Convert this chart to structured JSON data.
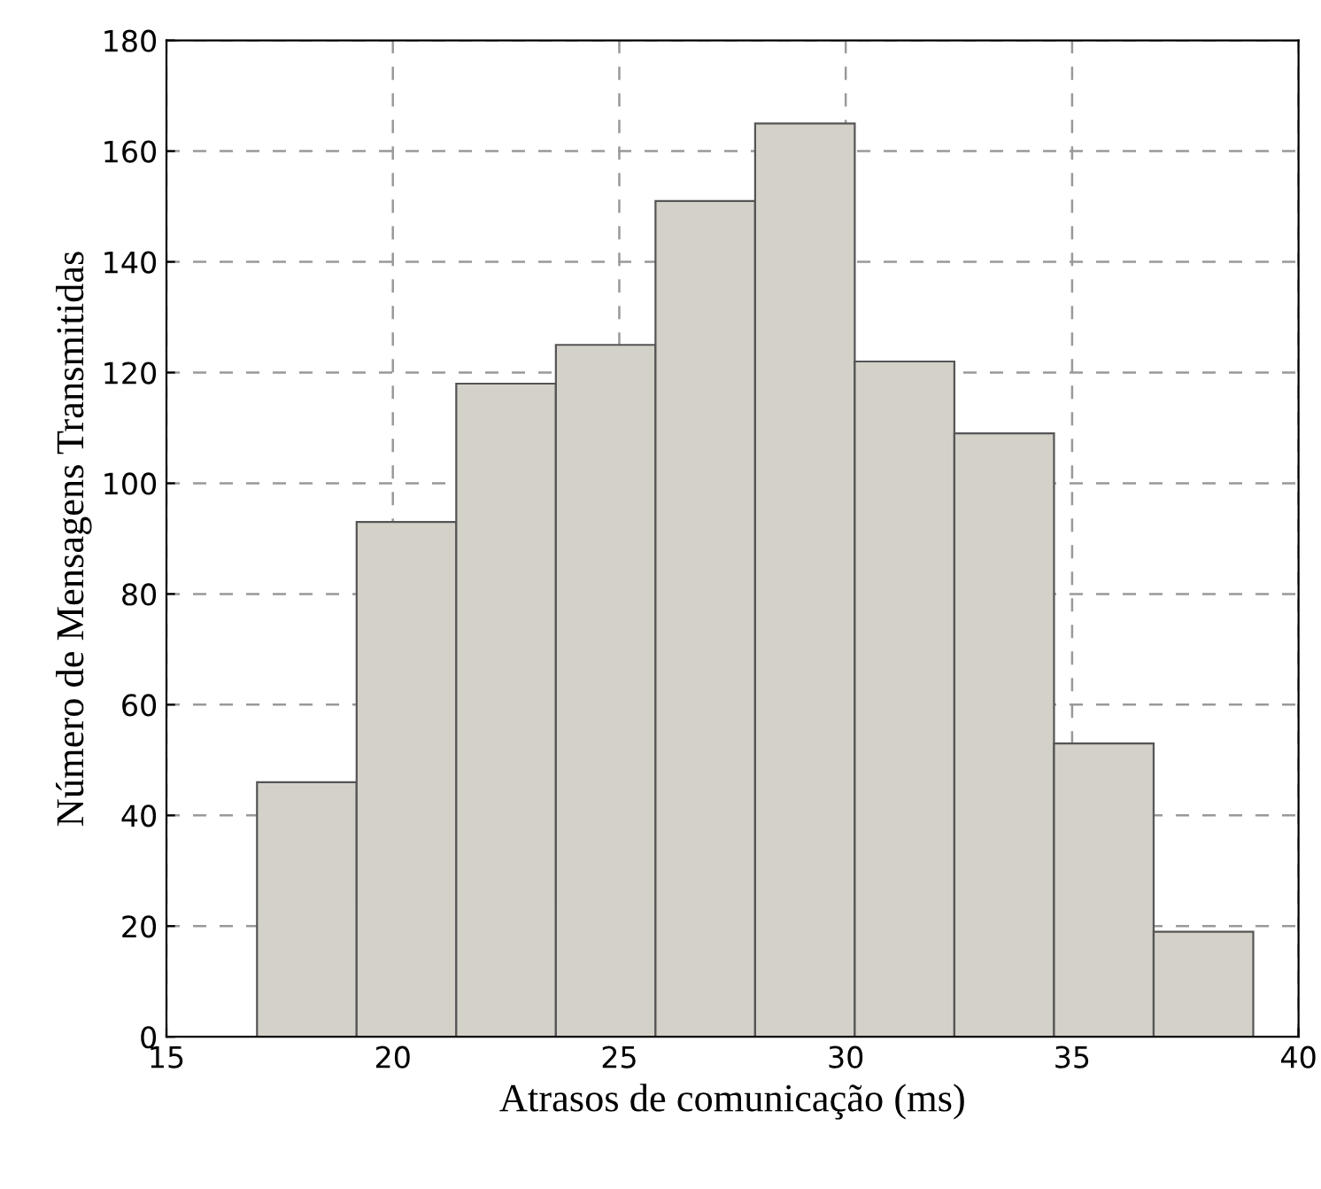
{
  "chart_data": {
    "type": "histogram",
    "xlabel": "Atrasos de comunicação (ms)",
    "ylabel": "Número de Mensagens Transmitidas",
    "bins": [
      17,
      19.2,
      21.4,
      23.6,
      25.8,
      28,
      30.2,
      32.4,
      34.6,
      36.8,
      39
    ],
    "values": [
      46,
      93,
      118,
      125,
      151,
      165,
      122,
      109,
      53,
      19
    ],
    "color": "#d4d1c9",
    "xlim": [
      15,
      40
    ],
    "xticks": [
      15,
      20,
      25,
      30,
      35,
      40
    ],
    "ylim": [
      0,
      180
    ],
    "yticks": [
      0,
      20,
      40,
      60,
      80,
      100,
      120,
      140,
      160,
      180
    ],
    "grid": true,
    "line_style": "dashed"
  }
}
